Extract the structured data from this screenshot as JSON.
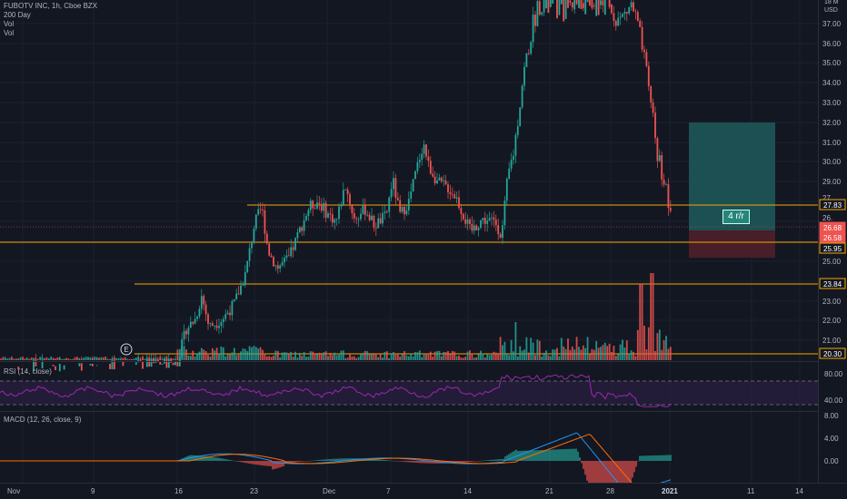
{
  "legend": {
    "title": "FUBOTV INC, 1h, Cboe BZX",
    "line2": "200 Day",
    "line3": "Vol",
    "line4": "Vol"
  },
  "rsi_label": "RSI (14, close)",
  "macd_label": "MACD (12, 26, close, 9)",
  "risk_reward_label": "4 r/r",
  "earnings_marker": "E",
  "price_axis": {
    "ticks": [
      "37.00",
      "36.00",
      "35.00",
      "34.00",
      "33.00",
      "32.00",
      "31.00",
      "30.00",
      "29.00",
      "25.00",
      "23.00",
      "22.00",
      "21.00"
    ],
    "top_labels": [
      "18 M",
      "USD"
    ],
    "partial_labels": [
      "27.",
      "26."
    ]
  },
  "price_tags": [
    {
      "label": "27.83",
      "price": 27.83,
      "bg": "#131722",
      "fg": "#ffffff",
      "border": "#f7a600"
    },
    {
      "label": "26.68",
      "price": 26.68,
      "bg": "#ef5350",
      "fg": "#ffffff",
      "border": "#ef5350"
    },
    {
      "label": "26.58",
      "price": 26.58,
      "bg": "#ef5350",
      "fg": "#ffffff",
      "border": "#ef5350"
    },
    {
      "label": "25.95",
      "price": 25.95,
      "bg": "#131722",
      "fg": "#ffffff",
      "border": "#f7a600"
    },
    {
      "label": "23.84",
      "price": 23.84,
      "bg": "#131722",
      "fg": "#ffffff",
      "border": "#f7a600"
    },
    {
      "label": "20.30",
      "price": 20.3,
      "bg": "#131722",
      "fg": "#ffffff",
      "border": "#f7a600"
    }
  ],
  "rsi_axis": {
    "ticks": [
      "80.00",
      "40.00"
    ]
  },
  "macd_axis": {
    "ticks": [
      "8.00",
      "4.00",
      "0.00"
    ]
  },
  "time_axis": {
    "labels": [
      "Nov",
      "9",
      "16",
      "23",
      "Dec",
      "7",
      "14",
      "21",
      "28",
      "2021",
      "11",
      "14"
    ]
  },
  "colors": {
    "up": "#26a69a",
    "down": "#ef5350",
    "level": "#f7a600",
    "rsi": "#9c27b0",
    "macd": "#2196f3",
    "signal": "#ff6d00",
    "target": "#1e5b5b",
    "stop": "#4f1f2a"
  }
}
